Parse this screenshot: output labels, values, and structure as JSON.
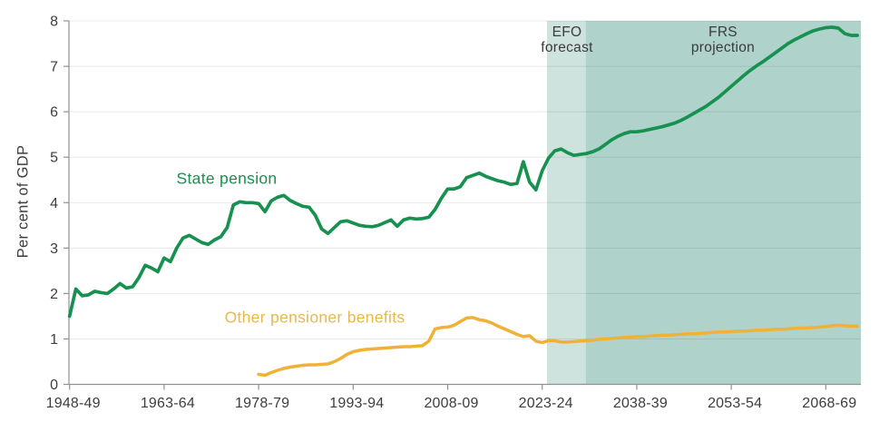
{
  "chart_data": {
    "type": "line",
    "title": "",
    "xlabel": "",
    "ylabel": "Per cent of GDP",
    "ylim": [
      0,
      8
    ],
    "y_ticks": [
      0,
      1,
      2,
      3,
      4,
      5,
      6,
      7,
      8
    ],
    "x_range": [
      1948,
      2073
    ],
    "x_ticks": [
      {
        "year": 1948,
        "label": "1948-49"
      },
      {
        "year": 1963,
        "label": "1963-64"
      },
      {
        "year": 1978,
        "label": "1978-79"
      },
      {
        "year": 1993,
        "label": "1993-94"
      },
      {
        "year": 2008,
        "label": "2008-09"
      },
      {
        "year": 2023,
        "label": "2023-24"
      },
      {
        "year": 2038,
        "label": "2038-39"
      },
      {
        "year": 2053,
        "label": "2053-54"
      },
      {
        "year": 2068,
        "label": "2068-69"
      }
    ],
    "grid": "horizontal",
    "legend_position": "inline-labels",
    "series": [
      {
        "name": "State pension",
        "color": "#169150",
        "start_year": 1948,
        "values": [
          1.5,
          2.1,
          1.95,
          1.97,
          2.05,
          2.02,
          2.0,
          2.1,
          2.22,
          2.12,
          2.15,
          2.35,
          2.62,
          2.56,
          2.48,
          2.78,
          2.7,
          3.0,
          3.22,
          3.28,
          3.2,
          3.12,
          3.08,
          3.18,
          3.25,
          3.45,
          3.95,
          4.02,
          4.0,
          4.0,
          3.98,
          3.8,
          4.04,
          4.12,
          4.16,
          4.05,
          3.98,
          3.92,
          3.9,
          3.72,
          3.42,
          3.32,
          3.45,
          3.58,
          3.6,
          3.55,
          3.5,
          3.48,
          3.47,
          3.5,
          3.56,
          3.62,
          3.48,
          3.62,
          3.66,
          3.64,
          3.65,
          3.68,
          3.85,
          4.1,
          4.3,
          4.3,
          4.35,
          4.55,
          4.6,
          4.65,
          4.58,
          4.53,
          4.48,
          4.45,
          4.4,
          4.42,
          4.9,
          4.45,
          4.28,
          4.7,
          4.98,
          5.14,
          5.18,
          5.1,
          5.04,
          5.06,
          5.08,
          5.12,
          5.18,
          5.28,
          5.38,
          5.46,
          5.52,
          5.56,
          5.56,
          5.58,
          5.61,
          5.64,
          5.67,
          5.71,
          5.75,
          5.81,
          5.88,
          5.96,
          6.04,
          6.12,
          6.22,
          6.32,
          6.44,
          6.56,
          6.68,
          6.8,
          6.91,
          7.01,
          7.1,
          7.2,
          7.3,
          7.4,
          7.5,
          7.58,
          7.65,
          7.72,
          7.78,
          7.82,
          7.85,
          7.86,
          7.84,
          7.72,
          7.68,
          7.68
        ]
      },
      {
        "name": "Other pensioner benefits",
        "color": "#f0b236",
        "start_year": 1978,
        "values": [
          0.22,
          0.2,
          0.26,
          0.31,
          0.35,
          0.38,
          0.4,
          0.42,
          0.43,
          0.43,
          0.44,
          0.45,
          0.5,
          0.57,
          0.66,
          0.72,
          0.75,
          0.77,
          0.78,
          0.79,
          0.8,
          0.81,
          0.82,
          0.83,
          0.83,
          0.84,
          0.85,
          0.95,
          1.22,
          1.25,
          1.26,
          1.3,
          1.38,
          1.46,
          1.47,
          1.42,
          1.4,
          1.35,
          1.28,
          1.22,
          1.16,
          1.1,
          1.05,
          1.07,
          0.95,
          0.92,
          0.96,
          0.96,
          0.93,
          0.93,
          0.94,
          0.95,
          0.96,
          0.97,
          0.99,
          1.0,
          1.01,
          1.02,
          1.03,
          1.04,
          1.05,
          1.05,
          1.06,
          1.07,
          1.08,
          1.08,
          1.09,
          1.1,
          1.11,
          1.11,
          1.12,
          1.13,
          1.14,
          1.15,
          1.15,
          1.16,
          1.17,
          1.17,
          1.18,
          1.19,
          1.19,
          1.2,
          1.21,
          1.21,
          1.22,
          1.23,
          1.24,
          1.24,
          1.25,
          1.26,
          1.27,
          1.29,
          1.3,
          1.29,
          1.28,
          1.28
        ]
      }
    ],
    "bands": [
      {
        "name": "EFO forecast",
        "label_line1": "EFO",
        "label_line2": "forecast",
        "start_year": 2023.75,
        "end_year": 2029.9,
        "color": "#cfe3de"
      },
      {
        "name": "FRS projection",
        "label_line1": "FRS",
        "label_line2": "projection",
        "start_year": 2029.9,
        "end_year": 2073.6,
        "color": "#afd3cb"
      }
    ],
    "colors": {
      "axis": "#919191",
      "gridline": "#e4e4e4",
      "tick_text": "#3d3d3d"
    }
  }
}
